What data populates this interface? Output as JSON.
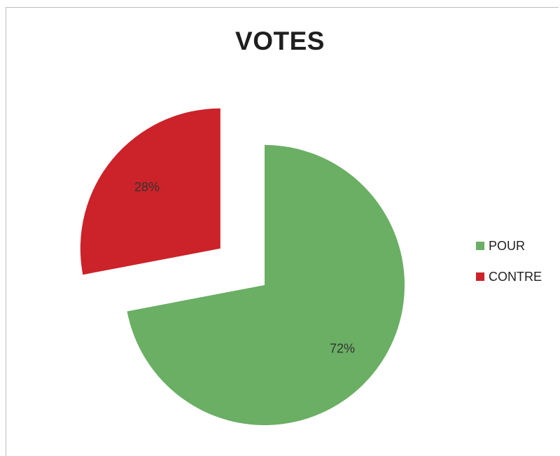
{
  "chart_data": {
    "type": "pie",
    "title": "VOTES",
    "categories": [
      "POUR",
      "CONTRE"
    ],
    "values": [
      72,
      28
    ],
    "labels": [
      "72%",
      "28%"
    ],
    "colors": [
      "#6aaf64",
      "#cc2229"
    ],
    "exploded": true,
    "legend_position": "right"
  }
}
